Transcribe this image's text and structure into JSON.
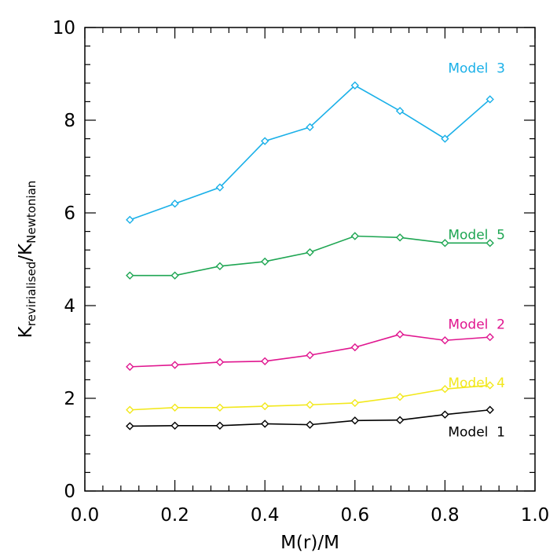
{
  "chart_data": {
    "type": "line",
    "title": "",
    "xlabel": "M(r)/M",
    "ylabel": {
      "main": "K",
      "sub1": "revirialised",
      "slash": "/",
      "main2": "K",
      "sub2": "Newtonian"
    },
    "xlim": [
      0.0,
      1.0
    ],
    "ylim": [
      0,
      10
    ],
    "xticks": [
      "0.0",
      "0.2",
      "0.4",
      "0.6",
      "0.8",
      "1.0"
    ],
    "yticks": [
      "0",
      "2",
      "4",
      "6",
      "8",
      "10"
    ],
    "grid": false,
    "x": [
      0.1,
      0.2,
      0.3,
      0.4,
      0.5,
      0.6,
      0.7,
      0.8,
      0.9
    ],
    "series": [
      {
        "name": "Model 3",
        "color": "#1ab0e8",
        "values": [
          5.85,
          6.2,
          6.55,
          7.55,
          7.85,
          8.75,
          8.2,
          7.6,
          8.45
        ]
      },
      {
        "name": "Model 5",
        "color": "#1fa653",
        "values": [
          4.65,
          4.65,
          4.85,
          4.95,
          5.15,
          5.5,
          5.47,
          5.35,
          5.35
        ]
      },
      {
        "name": "Model 2",
        "color": "#e0168f",
        "values": [
          2.68,
          2.72,
          2.78,
          2.8,
          2.93,
          3.1,
          3.38,
          3.25,
          3.32
        ]
      },
      {
        "name": "Model 4",
        "color": "#f2e81c",
        "values": [
          1.75,
          1.8,
          1.8,
          1.83,
          1.86,
          1.9,
          2.03,
          2.2,
          2.28
        ]
      },
      {
        "name": "Model 1",
        "color": "#000000",
        "values": [
          1.4,
          1.41,
          1.41,
          1.45,
          1.43,
          1.52,
          1.53,
          1.65,
          1.75
        ]
      }
    ]
  }
}
